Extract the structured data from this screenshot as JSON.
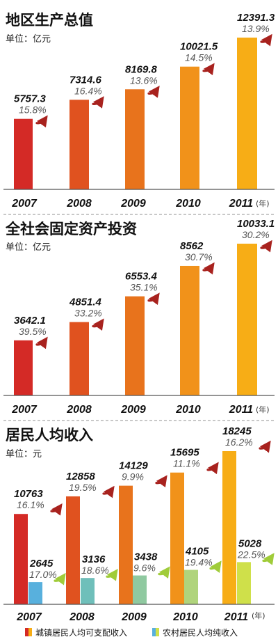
{
  "chart_data": [
    {
      "type": "bar",
      "title": "地区生产总值",
      "unit_label": "单位：亿元",
      "categories": [
        "2007",
        "2008",
        "2009",
        "2010",
        "2011"
      ],
      "x_unit": "(年)",
      "series": [
        {
          "values": [
            5757.3,
            7314.6,
            8169.8,
            10021.5,
            12391.3
          ],
          "value_labels": [
            "5757.3",
            "7314.6",
            "8169.8",
            "10021.5",
            "12391.3"
          ],
          "growth_labels": [
            "15.8%",
            "16.4%",
            "13.6%",
            "14.5%",
            "13.9%"
          ]
        }
      ]
    },
    {
      "type": "bar",
      "title": "全社会固定资产投资",
      "unit_label": "单位：亿元",
      "categories": [
        "2007",
        "2008",
        "2009",
        "2010",
        "2011"
      ],
      "x_unit": "(年)",
      "series": [
        {
          "values": [
            3642.1,
            4851.4,
            6553.4,
            8562,
            10033.1
          ],
          "value_labels": [
            "3642.1",
            "4851.4",
            "6553.4",
            "8562",
            "10033.1"
          ],
          "growth_labels": [
            "39.5%",
            "33.2%",
            "35.1%",
            "30.7%",
            "30.2%"
          ]
        }
      ]
    },
    {
      "type": "bar",
      "title": "居民人均收入",
      "unit_label": "单位：元",
      "categories": [
        "2007",
        "2008",
        "2009",
        "2010",
        "2011"
      ],
      "x_unit": "(年)",
      "legend_position": "bottom",
      "series": [
        {
          "name": "城镇居民人均可支配收入",
          "values": [
            10763,
            12858,
            14129,
            15695,
            18245
          ],
          "value_labels": [
            "10763",
            "12858",
            "14129",
            "15695",
            "18245"
          ],
          "growth_labels": [
            "16.1%",
            "19.5%",
            "9.9%",
            "11.1%",
            "16.2%"
          ]
        },
        {
          "name": "农村居民人均纯收入",
          "values": [
            2645,
            3136,
            3438,
            4105,
            5028
          ],
          "value_labels": [
            "2645",
            "3136",
            "3438",
            "4105",
            "5028"
          ],
          "growth_labels": [
            "17.0%",
            "18.6%",
            "9.6%",
            "19.4%",
            "22.5%"
          ]
        }
      ]
    }
  ],
  "colors": {
    "bar_gradient": [
      "#d42a26",
      "#e0521f",
      "#e8731c",
      "#f1921a",
      "#f7ad16"
    ],
    "rural_gradient": [
      "#58b0dd",
      "#6fbfba",
      "#8fc9a0",
      "#b0d47c",
      "#cfe04a"
    ],
    "arrow_urban": "#a8221e",
    "arrow_rural": "#a0cc3a"
  },
  "icons": {
    "growth_arrow": "up-right-arrow-icon"
  }
}
